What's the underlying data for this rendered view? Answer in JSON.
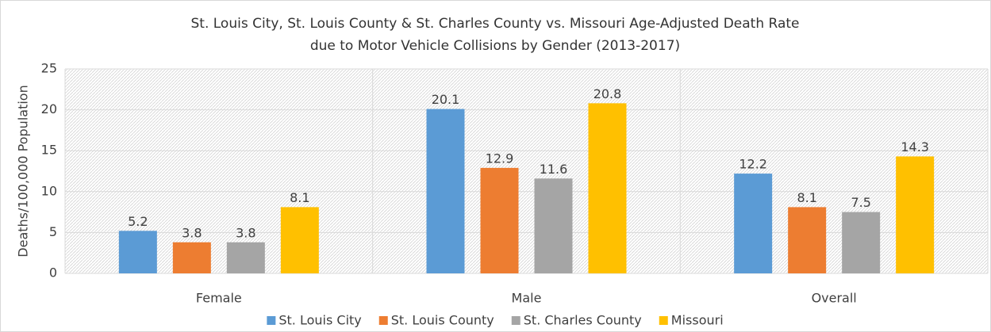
{
  "chart_data": {
    "type": "bar",
    "title": [
      "St. Louis City, St. Louis County & St. Charles County vs. Missouri Age-Adjusted Death Rate",
      "due to Motor Vehicle Collisions by Gender (2013-2017)"
    ],
    "y_label": "Deaths/100,000 Population",
    "categories": [
      "Female",
      "Male",
      "Overall"
    ],
    "series": [
      {
        "name": "St. Louis City",
        "color": "#5b9bd5",
        "values": [
          5.2,
          20.1,
          12.2
        ]
      },
      {
        "name": "St. Louis County",
        "color": "#ed7d31",
        "values": [
          3.8,
          12.9,
          8.1
        ]
      },
      {
        "name": "St. Charles County",
        "color": "#a5a5a5",
        "values": [
          3.8,
          11.6,
          7.5
        ]
      },
      {
        "name": "Missouri",
        "color": "#ffc000",
        "values": [
          8.1,
          20.8,
          14.3
        ]
      }
    ],
    "ylim": [
      0,
      25
    ],
    "yticks": [
      0,
      5,
      10,
      15,
      20,
      25
    ],
    "grid": true,
    "legend": "bottom"
  }
}
